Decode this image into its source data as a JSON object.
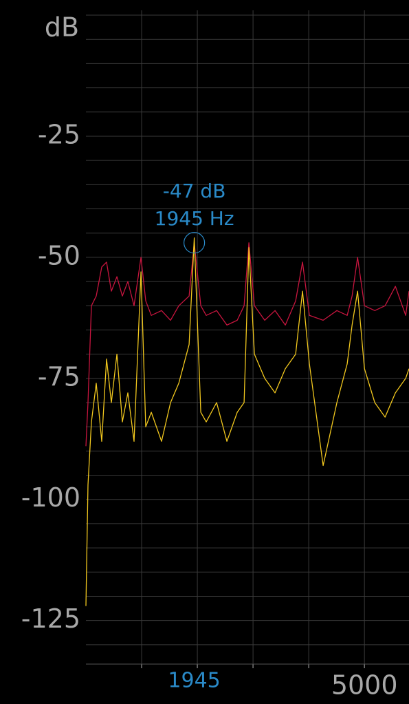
{
  "chart_data": {
    "type": "line",
    "y_unit_label": "dB",
    "xlim": [
      0,
      5800
    ],
    "ylim": [
      -134,
      1
    ],
    "yticks": [
      -125,
      -100,
      -75,
      -50,
      -25
    ],
    "ygrid": [
      -130,
      -125,
      -120,
      -115,
      -110,
      -105,
      -100,
      -95,
      -90,
      -85,
      -80,
      -75,
      -70,
      -65,
      -60,
      -55,
      -50,
      -45,
      -40,
      -35,
      -30,
      -25,
      -20,
      -15,
      -10,
      -5,
      0
    ],
    "xticks": [
      5000
    ],
    "xgrid": [
      1000,
      2000,
      3000,
      4000,
      5000
    ],
    "grid": true,
    "x": [
      0,
      37,
      99,
      185,
      284,
      370,
      457,
      556,
      654,
      753,
      864,
      988,
      1074,
      1173,
      1358,
      1519,
      1667,
      1852,
      1945,
      2062,
      2160,
      2346,
      2531,
      2716,
      2840,
      2926,
      3025,
      3210,
      3395,
      3580,
      3765,
      3889,
      4012,
      4259,
      4506,
      4691,
      4778,
      4877,
      5000,
      5185,
      5370,
      5556,
      5741,
      5800
    ],
    "series": [
      {
        "color": "#c8153f",
        "values": [
          -89,
          -80,
          -60,
          -58,
          -52,
          -51,
          -57,
          -54,
          -58,
          -55,
          -60,
          -50,
          -59,
          -62,
          -61,
          -63,
          -60,
          -58,
          -47,
          -60,
          -62,
          -61,
          -64,
          -63,
          -60,
          -47,
          -60,
          -63,
          -61,
          -64,
          -59,
          -51,
          -62,
          -63,
          -61,
          -62,
          -58,
          -50,
          -60,
          -61,
          -60,
          -56,
          -62,
          -57
        ]
      },
      {
        "color": "#f2c81e",
        "values": [
          -122,
          -97,
          -84,
          -76,
          -88,
          -71,
          -80,
          -70,
          -84,
          -78,
          -88,
          -53,
          -85,
          -82,
          -88,
          -80,
          -76,
          -68,
          -46,
          -82,
          -84,
          -80,
          -88,
          -82,
          -80,
          -48,
          -70,
          -75,
          -78,
          -73,
          -70,
          -57,
          -72,
          -93,
          -80,
          -72,
          -64,
          -57,
          -73,
          -80,
          -83,
          -78,
          -75,
          -73
        ]
      }
    ],
    "peak": {
      "freq": 1945,
      "db": -47,
      "labels": [
        "-47 dB",
        "1945 Hz"
      ],
      "color": "#2a8ac8"
    }
  }
}
